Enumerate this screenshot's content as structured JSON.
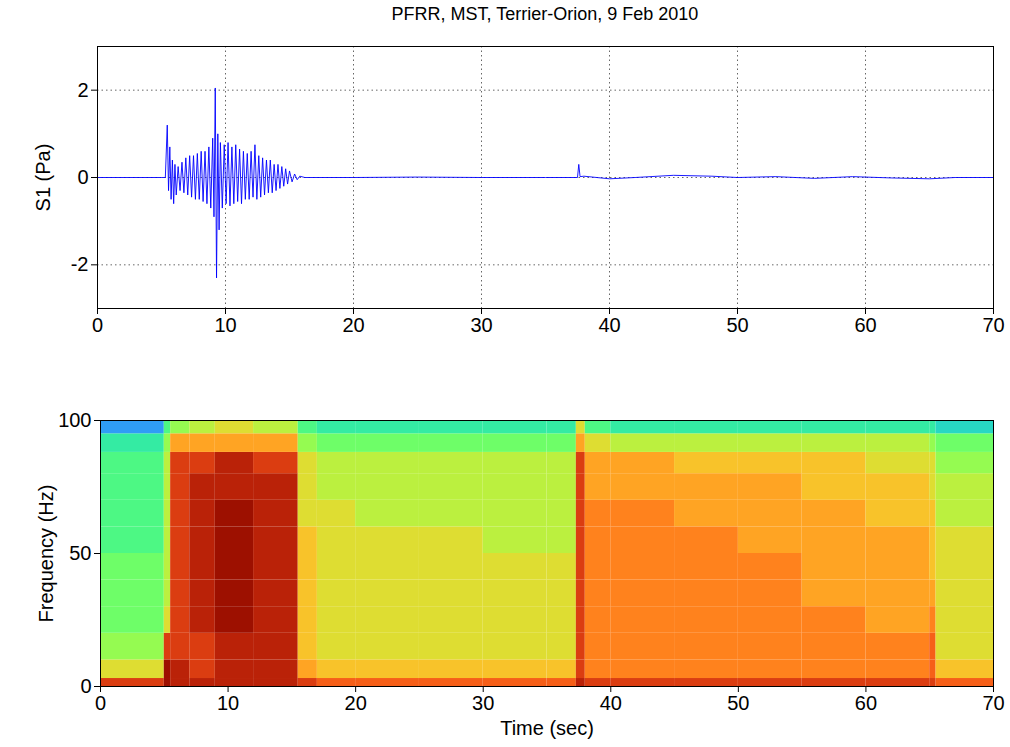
{
  "chart_data": [
    {
      "type": "line",
      "title": "PFRR, MST, Terrier-Orion, 9 Feb 2010",
      "ylabel": "S1 (Pa)",
      "color": "#0000ff",
      "grid": true,
      "xlim": [
        0,
        70
      ],
      "xticks": [
        0,
        10,
        20,
        30,
        40,
        50,
        60,
        70
      ],
      "ylim": [
        -3,
        3
      ],
      "yticks": [
        -2,
        0,
        2
      ],
      "x": [
        0,
        5,
        5.3,
        5.45,
        5.55,
        5.65,
        5.75,
        5.85,
        5.95,
        6.05,
        6.15,
        6.3,
        6.45,
        6.6,
        6.75,
        6.9,
        7.05,
        7.2,
        7.35,
        7.5,
        7.65,
        7.8,
        7.95,
        8.1,
        8.25,
        8.4,
        8.55,
        8.7,
        8.85,
        9.0,
        9.1,
        9.2,
        9.3,
        9.4,
        9.5,
        9.6,
        9.75,
        9.9,
        10.05,
        10.2,
        10.35,
        10.5,
        10.65,
        10.8,
        10.95,
        11.1,
        11.25,
        11.4,
        11.55,
        11.7,
        11.85,
        12.0,
        12.15,
        12.3,
        12.45,
        12.6,
        12.75,
        12.9,
        13.05,
        13.2,
        13.35,
        13.5,
        13.65,
        13.8,
        13.95,
        14.1,
        14.25,
        14.4,
        14.55,
        14.7,
        14.85,
        15.0,
        15.2,
        15.4,
        15.6,
        15.8,
        16.2,
        20,
        25,
        30,
        35,
        37.5,
        37.6,
        37.7,
        38,
        40,
        42,
        45,
        48,
        50,
        53,
        56,
        59,
        62,
        65,
        67,
        70
      ],
      "values": [
        0,
        0,
        0,
        1.2,
        -0.3,
        0.7,
        -0.5,
        0.4,
        -0.6,
        0.3,
        -0.4,
        0.25,
        -0.3,
        0.35,
        -0.35,
        0.45,
        -0.4,
        0.5,
        -0.45,
        0.5,
        -0.5,
        0.55,
        -0.5,
        0.6,
        -0.55,
        0.6,
        -0.6,
        0.7,
        -0.7,
        0.9,
        -0.9,
        2.05,
        -2.3,
        1.0,
        -1.2,
        0.8,
        -0.7,
        0.75,
        -0.6,
        0.8,
        -0.65,
        0.7,
        -0.6,
        0.75,
        -0.55,
        0.65,
        -0.6,
        0.6,
        -0.5,
        0.55,
        -0.5,
        0.6,
        -0.45,
        0.75,
        -0.5,
        0.5,
        -0.45,
        0.45,
        -0.4,
        0.4,
        -0.35,
        0.4,
        -0.35,
        0.3,
        -0.3,
        0.3,
        -0.25,
        0.25,
        -0.2,
        0.2,
        -0.15,
        0.15,
        -0.1,
        0.08,
        -0.05,
        0.03,
        0,
        0,
        0.01,
        0,
        0,
        0,
        0.3,
        0.02,
        0.03,
        -0.03,
        0,
        0.05,
        0.03,
        0,
        0.02,
        -0.02,
        0.02,
        -0.01,
        -0.03,
        0,
        0
      ]
    },
    {
      "type": "heatmap",
      "xlabel": "Time (sec)",
      "ylabel": "Frequency (Hz)",
      "grid": false,
      "xlim": [
        0,
        70
      ],
      "xticks": [
        0,
        10,
        20,
        30,
        40,
        50,
        60,
        70
      ],
      "ylim": [
        0,
        100
      ],
      "yticks": [
        0,
        50,
        100
      ],
      "time_bins": [
        0,
        5,
        5.5,
        7,
        9,
        12,
        15.5,
        17,
        20,
        25,
        30,
        35,
        37.3,
        38,
        40,
        45,
        50,
        55,
        60,
        65,
        65.5,
        70
      ],
      "freq_bins": [
        0,
        3,
        10,
        20,
        30,
        40,
        50,
        60,
        70,
        80,
        88,
        95,
        100
      ],
      "zlim": [
        0,
        10
      ],
      "cells": [
        [
          8.5,
          9.5,
          9,
          9,
          9,
          9,
          8.5,
          8,
          8,
          8,
          8,
          8,
          9,
          8.5,
          8.5,
          8.5,
          8.5,
          8.5,
          8.5,
          8.5,
          8
        ],
        [
          6,
          9.5,
          9,
          8.5,
          9,
          9,
          7,
          6.5,
          6.5,
          6.5,
          6.5,
          6.5,
          8.5,
          7.5,
          7.5,
          7.5,
          7.5,
          7.5,
          7.5,
          8,
          6.5
        ],
        [
          5,
          8.5,
          8.5,
          8.5,
          9,
          9,
          6.5,
          6,
          6,
          6,
          6,
          6,
          8.5,
          7.5,
          7.5,
          7.5,
          7.5,
          7.5,
          7.5,
          8,
          6
        ],
        [
          4.5,
          6,
          8.5,
          9,
          9.5,
          9,
          6.5,
          6,
          6,
          6,
          6,
          6,
          8.5,
          7.5,
          7.5,
          7.5,
          7.5,
          7.5,
          7,
          7.5,
          6
        ],
        [
          4.5,
          5.5,
          8.5,
          9,
          9.5,
          9,
          6.5,
          6,
          6,
          6,
          6,
          6,
          8.5,
          7.5,
          7.5,
          7.5,
          7.5,
          7,
          7,
          7,
          6
        ],
        [
          4.5,
          5.5,
          8.5,
          9,
          9.5,
          9,
          6.5,
          6,
          6,
          6,
          6,
          6,
          8.5,
          7.5,
          7.5,
          7.5,
          7.5,
          7,
          7,
          6.5,
          6
        ],
        [
          4,
          5.5,
          8.5,
          9,
          9.5,
          9,
          6.5,
          6,
          6,
          6,
          5.5,
          5.5,
          8.5,
          7.5,
          7.5,
          7.5,
          7,
          7,
          7,
          6.5,
          6
        ],
        [
          4,
          5.5,
          8.5,
          9,
          9.5,
          9,
          6,
          6,
          5.5,
          5.5,
          5.5,
          5.5,
          8.5,
          7.5,
          7.5,
          7,
          7,
          7,
          6.5,
          6.5,
          5.5
        ],
        [
          4,
          5.5,
          8.5,
          9,
          9,
          9,
          6,
          5.5,
          5.5,
          5.5,
          5.5,
          5.5,
          8.5,
          7,
          7,
          7,
          7,
          6.5,
          6.5,
          6,
          5.5
        ],
        [
          4,
          5.5,
          8.5,
          8.5,
          9,
          8.5,
          6,
          5.5,
          5.5,
          5.5,
          5.5,
          5.5,
          8.5,
          7,
          7,
          6.5,
          6.5,
          6.5,
          6,
          6,
          5
        ],
        [
          3.5,
          5,
          7,
          7,
          7,
          7,
          5,
          4.5,
          4.5,
          4.5,
          4.5,
          4.5,
          7,
          6,
          5.5,
          5.5,
          5.5,
          5.5,
          5.5,
          5,
          4.5
        ],
        [
          2,
          4,
          5,
          5.5,
          6,
          5.5,
          4,
          3.5,
          3.5,
          3.5,
          3.5,
          3.5,
          6,
          4,
          3.5,
          3.5,
          3.5,
          3.5,
          3.5,
          3.5,
          3
        ]
      ]
    }
  ]
}
